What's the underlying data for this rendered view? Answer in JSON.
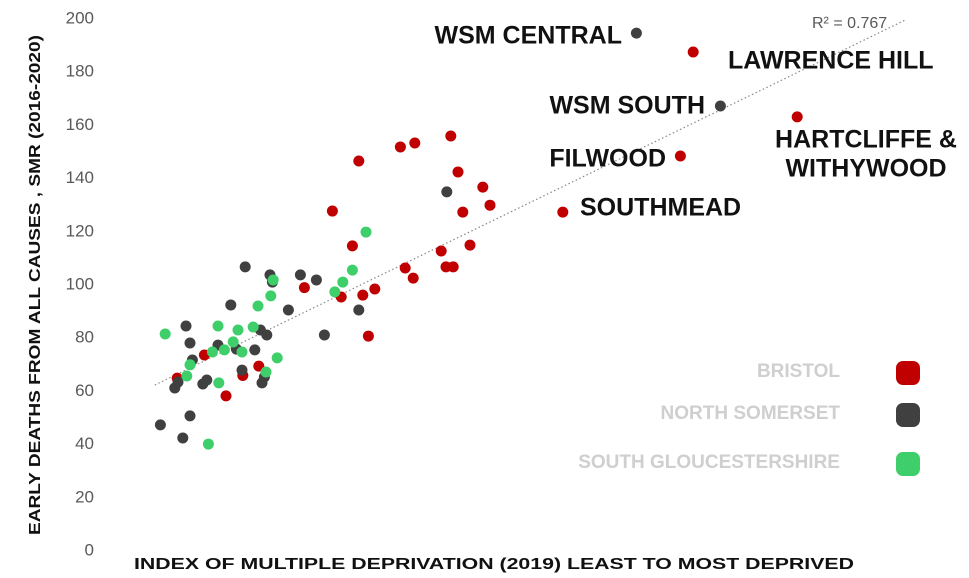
{
  "chart_data": {
    "type": "scatter",
    "x_label": "INDEX OF MULTIPLE DEPRIVATION (2019) LEAST TO MOST DEPRIVED",
    "y_label": "EARLY DEATHS FROM ALL CAUSES , SMR (2016-2020)",
    "xlim": [
      0,
      100
    ],
    "ylim": [
      0,
      200
    ],
    "yticks": [
      0,
      20,
      40,
      60,
      80,
      100,
      120,
      140,
      160,
      180,
      200
    ],
    "legend": "lower right",
    "series": [
      {
        "name": "BRISTOL",
        "color": "#c00000",
        "x": [
          7.4,
          10.8,
          13.5,
          15.6,
          17.6,
          23.3,
          26.8,
          27.9,
          29.3,
          30.1,
          30.6,
          31.3,
          32.1,
          35.3,
          37.1,
          35.9,
          36.9,
          40.4,
          41.0,
          41.9,
          41.6,
          42.5,
          43.1,
          44.0,
          45.6,
          46.5,
          55.6,
          70.3,
          71.9,
          84.9
        ],
        "values": [
          65,
          73.7,
          58.3,
          66,
          69.5,
          99,
          127.8,
          95.5,
          114.7,
          146.6,
          96.2,
          80.8,
          98.5,
          151.9,
          153.4,
          106.4,
          102.6,
          112.8,
          106.8,
          106.8,
          156,
          142.5,
          127.4,
          115,
          136.8,
          130,
          127.4,
          148.5,
          187.6,
          163.2
        ]
      },
      {
        "name": "NORTH SOMERSET",
        "color": "#404040",
        "x": [
          5.3,
          7.1,
          7.5,
          8.1,
          8.5,
          9.0,
          9.0,
          9.3,
          10.6,
          11.1,
          12.5,
          14.1,
          14.8,
          15.5,
          15.9,
          17.1,
          17.8,
          18.0,
          18.3,
          18.6,
          19.0,
          19.3,
          21.3,
          22.8,
          24.8,
          25.8,
          30.1,
          41.1,
          64.8,
          75.3
        ],
        "values": [
          47.4,
          61.3,
          63.5,
          42.5,
          84.6,
          50.8,
          78.2,
          71.8,
          62.8,
          64.3,
          77.4,
          92.5,
          75.9,
          68,
          106.8,
          75.6,
          83.1,
          63.2,
          65.4,
          81.2,
          103.8,
          101.1,
          90.6,
          103.8,
          101.9,
          81.2,
          90.6,
          135,
          194.7,
          167.3
        ]
      },
      {
        "name": "SOUTH GLOUCESTERSHIRE",
        "color": "#3ecf6a",
        "x": [
          5.9,
          8.6,
          9.0,
          11.3,
          11.8,
          12.5,
          12.6,
          13.3,
          14.4,
          15.0,
          15.5,
          16.9,
          17.5,
          18.5,
          19.1,
          19.4,
          19.9,
          27.1,
          28.1,
          29.3,
          31.0
        ],
        "values": [
          81.6,
          65.8,
          70,
          40.2,
          74.8,
          84.6,
          63.2,
          75.6,
          78.6,
          83.1,
          74.8,
          84.2,
          92.1,
          67.3,
          95.9,
          101.9,
          72.6,
          97.4,
          101.1,
          105.6,
          119.9
        ]
      }
    ],
    "trendline": {
      "x": [
        4.6,
        98.4
      ],
      "y": [
        62.4,
        199.6
      ],
      "label": "R² = 0.767"
    },
    "annotations": [
      "WSM CENTRAL",
      "LAWRENCE HILL",
      "WSM SOUTH",
      "FILWOOD",
      "SOUTHMEAD",
      [
        "HARTCLIFFE &",
        "WITHYWOOD"
      ]
    ]
  }
}
